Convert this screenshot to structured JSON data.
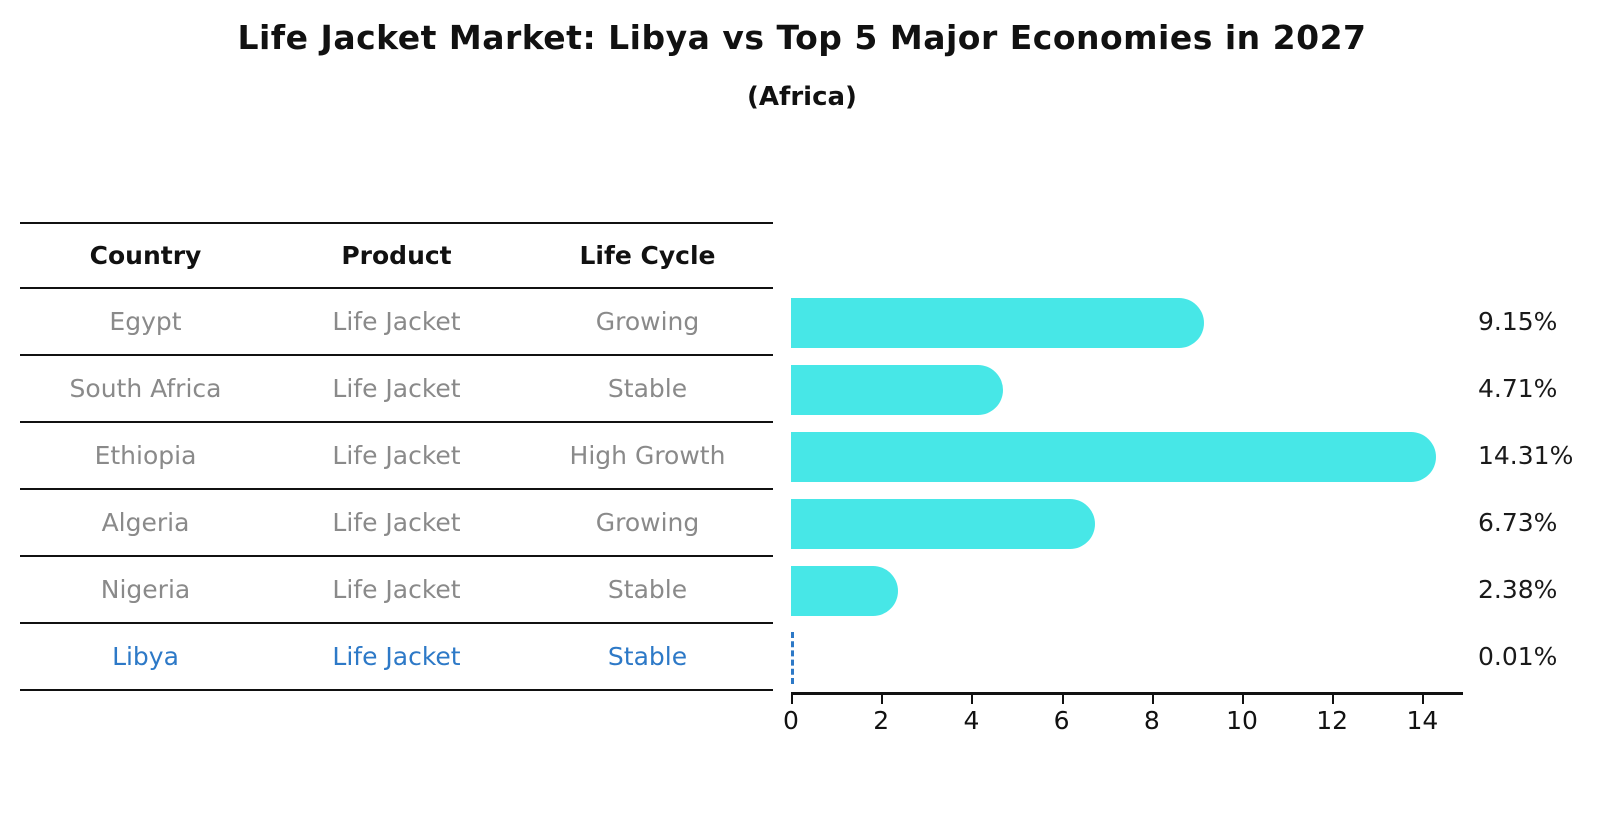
{
  "title": "Life Jacket Market: Libya vs Top 5 Major Economies in 2027",
  "subtitle": "(Africa)",
  "colors": {
    "bar": "#47e7e7",
    "highlight_blue": "#2d79c7",
    "row_text_gray": "#8a8a8a",
    "axis_black": "#111111"
  },
  "table": {
    "headers": [
      "Country",
      "Product",
      "Life Cycle"
    ],
    "rows": [
      {
        "country": "Egypt",
        "product": "Life Jacket",
        "life_cycle": "Growing",
        "highlight": false
      },
      {
        "country": "South Africa",
        "product": "Life Jacket",
        "life_cycle": "Stable",
        "highlight": false
      },
      {
        "country": "Ethiopia",
        "product": "Life Jacket",
        "life_cycle": "High Growth",
        "highlight": false
      },
      {
        "country": "Algeria",
        "product": "Life Jacket",
        "life_cycle": "Growing",
        "highlight": false
      },
      {
        "country": "Nigeria",
        "product": "Life Jacket",
        "life_cycle": "Stable",
        "highlight": true
      }
    ],
    "highlight_row": {
      "country": "Libya",
      "product": "Life Jacket",
      "life_cycle": "Stable"
    }
  },
  "chart_data": {
    "type": "bar",
    "orientation": "horizontal",
    "title": "Life Jacket Market: Libya vs Top 5 Major Economies in 2027 (Africa)",
    "categories": [
      "Egypt",
      "South Africa",
      "Ethiopia",
      "Algeria",
      "Nigeria",
      "Libya"
    ],
    "values": [
      9.15,
      4.71,
      14.31,
      6.73,
      2.38,
      0.01
    ],
    "value_labels": [
      "9.15%",
      "4.71%",
      "14.31%",
      "6.73%",
      "2.38%",
      "0.01%"
    ],
    "x_ticks": [
      0,
      2,
      4,
      6,
      8,
      10,
      12,
      14
    ],
    "xlim": [
      0,
      14.9
    ],
    "xlabel": "",
    "ylabel": "",
    "grid": false,
    "legend": false,
    "bar_color": "#47e7e7",
    "highlight_category": "Libya",
    "highlight_style": "dashed-blue-zero-line"
  }
}
